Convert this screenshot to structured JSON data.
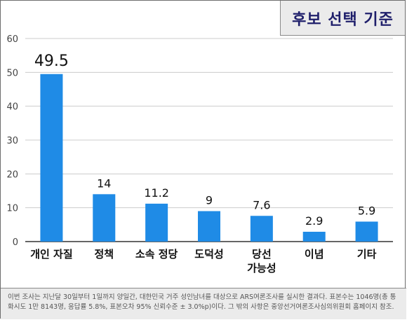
{
  "colors": {
    "bar": "#1f8be6",
    "title_text": "#1f1f6b",
    "title_bg": "#ebebeb",
    "footer_bg": "#ebebeb",
    "grid": "#cccccc"
  },
  "chart_data": {
    "type": "bar",
    "title": "후보 선택 기준",
    "categories": [
      [
        "개인 자질"
      ],
      [
        "정책"
      ],
      [
        "소속 정당"
      ],
      [
        "도덕성"
      ],
      [
        "당선",
        "가능성"
      ],
      [
        "이념"
      ],
      [
        "기타"
      ]
    ],
    "values": [
      49.5,
      14,
      11.2,
      9,
      7.6,
      2.9,
      5.9
    ],
    "value_labels": [
      "49.5",
      "14",
      "11.2",
      "9",
      "7.6",
      "2.9",
      "5.9"
    ],
    "yticks": [
      "0",
      "10",
      "20",
      "30",
      "40",
      "50",
      "60"
    ],
    "ylim": [
      0,
      60
    ],
    "grid": true,
    "xlabel": "",
    "ylabel": ""
  },
  "footer": {
    "note": "이번 조사는 지난달 30일부터 1일까지 양일간, 대한민국 거주 성인남녀를 대상으로 ARS여론조사를 실시한 결과다. 표본수는 1046명(총 통화시도 1만 8143명, 응답률 5.8%, 표본오차 95% 신뢰수준 ± 3.0%p)이다. 그 밖의 사항은 중앙선거여론조사심의위원회 홈페이지 참조."
  }
}
